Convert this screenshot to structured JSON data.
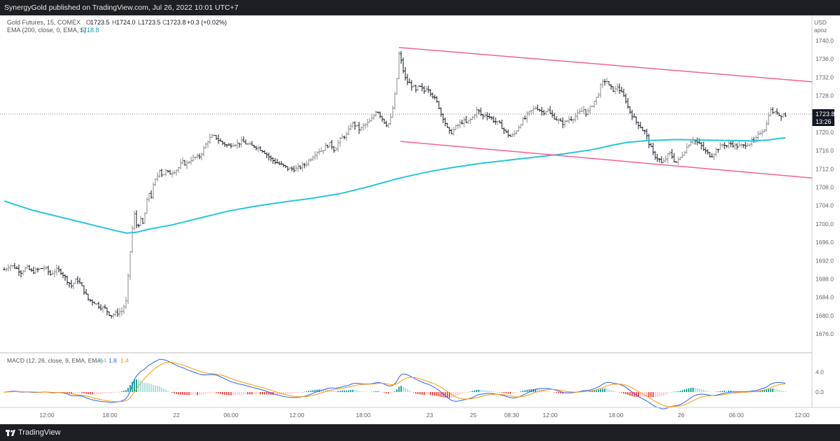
{
  "header": {
    "published_text": "SynergyGold published on TradingView.com, Jul 26, 2022 10:01 UTC+7"
  },
  "legend": {
    "symbol": "Gold Futures, 15, COMEX",
    "o_label": "O",
    "o_value": "1723.5",
    "h_label": "H",
    "h_value": "1724.0",
    "l_label": "L",
    "l_value": "1723.5",
    "c_label": "C",
    "c_value": "1723.8",
    "change": "+0.3 (+0.02%)",
    "ema_label": "EMA (200, close, 0, EMA, 5)",
    "ema_value": "1718.8"
  },
  "axis": {
    "currency": "USD",
    "scale_mode": "apoz",
    "price_ticks": [
      "1740.0",
      "1736.0",
      "1732.0",
      "1728.0",
      "1724.0",
      "1720.0",
      "1716.0",
      "1712.0",
      "1708.0",
      "1704.0",
      "1700.0",
      "1696.0",
      "1692.0",
      "1688.0",
      "1684.0",
      "1680.0",
      "1676.0"
    ],
    "last_price": "1723.8",
    "countdown": "13:26",
    "time_ticks": [
      "12:00",
      "18:00",
      "22",
      "06:00",
      "12:00",
      "18:00",
      "23",
      "25",
      "08:30",
      "12:00",
      "18:00",
      "26",
      "06:00",
      "12:00"
    ]
  },
  "macd": {
    "label": "MACD (12, 26, close, 9, EMA, EMA)",
    "hist_value": "0.4",
    "macd_value": "1.8",
    "signal_value": "1.4",
    "ticks": [
      "4.0",
      "0.0"
    ]
  },
  "footer": {
    "brand": "TradingView"
  },
  "colors": {
    "ema": "#26c6da",
    "channel": "#f06292",
    "macd_line": "#2962ff",
    "signal_line": "#ff9800",
    "hist_pos_strong": "#26a69a",
    "hist_pos_weak": "#b2dfdb",
    "hist_neg_strong": "#ef5350",
    "hist_neg_weak": "#ffcdd2"
  },
  "chart_data": {
    "type": "ohlc",
    "symbol": "Gold Futures",
    "timeframe": "15",
    "ylim": [
      1674,
      1744
    ],
    "price_path": [
      [
        0,
        1690
      ],
      [
        8,
        1691
      ],
      [
        16,
        1690.5
      ],
      [
        24,
        1689.5
      ],
      [
        32,
        1690.5
      ],
      [
        40,
        1689.5
      ],
      [
        48,
        1690
      ],
      [
        58,
        1690.5
      ],
      [
        66,
        1689
      ],
      [
        74,
        1690
      ],
      [
        82,
        1689.5
      ],
      [
        88,
        1688
      ],
      [
        96,
        1686.5
      ],
      [
        104,
        1688
      ],
      [
        112,
        1686
      ],
      [
        120,
        1683.5
      ],
      [
        128,
        1683
      ],
      [
        136,
        1682
      ],
      [
        144,
        1681.5
      ],
      [
        152,
        1680
      ],
      [
        160,
        1680.5
      ],
      [
        168,
        1681
      ],
      [
        174,
        1683
      ],
      [
        178,
        1690
      ],
      [
        182,
        1698
      ],
      [
        186,
        1702
      ],
      [
        190,
        1699
      ],
      [
        194,
        1701
      ],
      [
        198,
        1700
      ],
      [
        202,
        1703
      ],
      [
        206,
        1707
      ],
      [
        210,
        1706
      ],
      [
        214,
        1709
      ],
      [
        218,
        1710
      ],
      [
        222,
        1712
      ],
      [
        226,
        1710.5
      ],
      [
        230,
        1711.5
      ],
      [
        236,
        1711
      ],
      [
        242,
        1711.5
      ],
      [
        248,
        1712
      ],
      [
        254,
        1713.5
      ],
      [
        260,
        1713
      ],
      [
        266,
        1714
      ],
      [
        272,
        1714.5
      ],
      [
        278,
        1714.5
      ],
      [
        284,
        1716
      ],
      [
        290,
        1718
      ],
      [
        296,
        1719
      ],
      [
        302,
        1719
      ],
      [
        308,
        1718
      ],
      [
        314,
        1717.5
      ],
      [
        320,
        1717
      ],
      [
        326,
        1717.5
      ],
      [
        334,
        1717.5
      ],
      [
        340,
        1718
      ],
      [
        346,
        1717.5
      ],
      [
        352,
        1717
      ],
      [
        358,
        1717
      ],
      [
        364,
        1716.5
      ],
      [
        370,
        1716
      ],
      [
        376,
        1715
      ],
      [
        382,
        1714
      ],
      [
        388,
        1713.5
      ],
      [
        394,
        1713
      ],
      [
        400,
        1712.5
      ],
      [
        406,
        1712
      ],
      [
        412,
        1712
      ],
      [
        418,
        1712
      ],
      [
        424,
        1712.5
      ],
      [
        430,
        1713
      ],
      [
        436,
        1714
      ],
      [
        442,
        1715
      ],
      [
        448,
        1716
      ],
      [
        454,
        1716
      ],
      [
        460,
        1717
      ],
      [
        466,
        1717.5
      ],
      [
        472,
        1716
      ],
      [
        478,
        1718
      ],
      [
        484,
        1719
      ],
      [
        490,
        1719.5
      ],
      [
        496,
        1722
      ],
      [
        502,
        1721.5
      ],
      [
        508,
        1720.5
      ],
      [
        514,
        1721.5
      ],
      [
        520,
        1722
      ],
      [
        526,
        1723
      ],
      [
        532,
        1725
      ],
      [
        538,
        1723.5
      ],
      [
        544,
        1722
      ],
      [
        548,
        1721.5
      ],
      [
        552,
        1723
      ],
      [
        556,
        1726
      ],
      [
        560,
        1730
      ],
      [
        564,
        1737
      ],
      [
        568,
        1735
      ],
      [
        572,
        1732
      ],
      [
        576,
        1731
      ],
      [
        580,
        1730.5
      ],
      [
        584,
        1730
      ],
      [
        588,
        1729
      ],
      [
        592,
        1730
      ],
      [
        596,
        1729.5
      ],
      [
        600,
        1729
      ],
      [
        604,
        1730
      ],
      [
        608,
        1729
      ],
      [
        612,
        1728
      ],
      [
        616,
        1727
      ],
      [
        620,
        1726
      ],
      [
        624,
        1724
      ],
      [
        628,
        1723
      ],
      [
        632,
        1721
      ],
      [
        636,
        1720
      ],
      [
        640,
        1720
      ],
      [
        644,
        1721
      ],
      [
        648,
        1721.5
      ],
      [
        652,
        1722
      ],
      [
        656,
        1722.5
      ],
      [
        660,
        1722
      ],
      [
        664,
        1722.5
      ],
      [
        668,
        1723
      ],
      [
        672,
        1724
      ],
      [
        676,
        1725
      ],
      [
        680,
        1724
      ],
      [
        684,
        1723.5
      ],
      [
        688,
        1724
      ],
      [
        692,
        1723.5
      ],
      [
        696,
        1723
      ],
      [
        700,
        1722.5
      ],
      [
        706,
        1722
      ],
      [
        712,
        1721
      ],
      [
        716,
        1720
      ],
      [
        720,
        1719.5
      ],
      [
        724,
        1719
      ],
      [
        728,
        1719.5
      ],
      [
        732,
        1720.5
      ],
      [
        736,
        1721.5
      ],
      [
        740,
        1722.5
      ],
      [
        744,
        1723
      ],
      [
        748,
        1724
      ],
      [
        752,
        1724.5
      ],
      [
        756,
        1725
      ],
      [
        760,
        1725.5
      ],
      [
        764,
        1725
      ],
      [
        768,
        1724.5
      ],
      [
        772,
        1724.5
      ],
      [
        776,
        1725
      ],
      [
        780,
        1724
      ],
      [
        784,
        1723.5
      ],
      [
        788,
        1723
      ],
      [
        792,
        1722.5
      ],
      [
        796,
        1722
      ],
      [
        800,
        1722
      ],
      [
        804,
        1722.5
      ],
      [
        808,
        1723
      ],
      [
        812,
        1723
      ],
      [
        816,
        1723.5
      ],
      [
        820,
        1724
      ],
      [
        824,
        1724.5
      ],
      [
        828,
        1725
      ],
      [
        832,
        1724
      ],
      [
        836,
        1725
      ],
      [
        840,
        1726
      ],
      [
        844,
        1727
      ],
      [
        848,
        1728
      ],
      [
        852,
        1730
      ],
      [
        856,
        1731
      ],
      [
        860,
        1731.5
      ],
      [
        864,
        1730
      ],
      [
        868,
        1729.5
      ],
      [
        872,
        1729
      ],
      [
        876,
        1730
      ],
      [
        880,
        1729
      ],
      [
        884,
        1728
      ],
      [
        888,
        1727
      ],
      [
        892,
        1725
      ],
      [
        896,
        1724
      ],
      [
        900,
        1723
      ],
      [
        904,
        1722
      ],
      [
        908,
        1721.5
      ],
      [
        912,
        1720.5
      ],
      [
        916,
        1720
      ],
      [
        920,
        1718
      ],
      [
        924,
        1716.5
      ],
      [
        928,
        1715
      ],
      [
        932,
        1714.5
      ],
      [
        936,
        1714
      ],
      [
        940,
        1713
      ],
      [
        944,
        1714
      ],
      [
        948,
        1715
      ],
      [
        952,
        1715.5
      ],
      [
        956,
        1714
      ],
      [
        960,
        1713.5
      ],
      [
        964,
        1714
      ],
      [
        968,
        1715
      ],
      [
        972,
        1716
      ],
      [
        976,
        1717
      ],
      [
        980,
        1718
      ],
      [
        984,
        1718.5
      ],
      [
        988,
        1718
      ],
      [
        992,
        1717.5
      ],
      [
        996,
        1717
      ],
      [
        1000,
        1716
      ],
      [
        1004,
        1715.5
      ],
      [
        1008,
        1715
      ],
      [
        1012,
        1715
      ],
      [
        1016,
        1716
      ],
      [
        1020,
        1716.5
      ],
      [
        1024,
        1717
      ],
      [
        1028,
        1717.5
      ],
      [
        1032,
        1717
      ],
      [
        1036,
        1717.5
      ],
      [
        1040,
        1717.5
      ],
      [
        1044,
        1717
      ],
      [
        1048,
        1717
      ],
      [
        1052,
        1717
      ],
      [
        1056,
        1717
      ],
      [
        1060,
        1717.5
      ],
      [
        1064,
        1717.5
      ],
      [
        1068,
        1718
      ],
      [
        1072,
        1718
      ],
      [
        1076,
        1719
      ],
      [
        1080,
        1720
      ],
      [
        1084,
        1720.5
      ],
      [
        1088,
        1721
      ],
      [
        1092,
        1724
      ],
      [
        1096,
        1725
      ],
      [
        1100,
        1724
      ],
      [
        1104,
        1724.5
      ],
      [
        1108,
        1723.5
      ],
      [
        1112,
        1724
      ],
      [
        1116,
        1723.8
      ]
    ],
    "ema200": [
      [
        0,
        1705
      ],
      [
        40,
        1703
      ],
      [
        80,
        1701.5
      ],
      [
        120,
        1700
      ],
      [
        160,
        1698.5
      ],
      [
        175,
        1698
      ],
      [
        190,
        1698.2
      ],
      [
        205,
        1698.8
      ],
      [
        240,
        1699.8
      ],
      [
        280,
        1701.3
      ],
      [
        320,
        1702.8
      ],
      [
        360,
        1703.9
      ],
      [
        400,
        1704.8
      ],
      [
        440,
        1705.6
      ],
      [
        480,
        1706.6
      ],
      [
        520,
        1708.1
      ],
      [
        560,
        1709.8
      ],
      [
        600,
        1711.2
      ],
      [
        640,
        1712.3
      ],
      [
        680,
        1713.2
      ],
      [
        720,
        1713.9
      ],
      [
        760,
        1714.6
      ],
      [
        800,
        1715.3
      ],
      [
        840,
        1716.2
      ],
      [
        870,
        1717.2
      ],
      [
        890,
        1717.8
      ],
      [
        920,
        1718.2
      ],
      [
        960,
        1718.4
      ],
      [
        1000,
        1718.3
      ],
      [
        1040,
        1718.2
      ],
      [
        1070,
        1718.1
      ],
      [
        1090,
        1718.3
      ],
      [
        1116,
        1718.8
      ]
    ],
    "channel_upper": [
      [
        564,
        1738.5
      ],
      [
        1155,
        1731
      ]
    ],
    "channel_lower": [
      [
        566,
        1718
      ],
      [
        1155,
        1710
      ]
    ],
    "macd_ylim": [
      -2.5,
      7
    ]
  }
}
